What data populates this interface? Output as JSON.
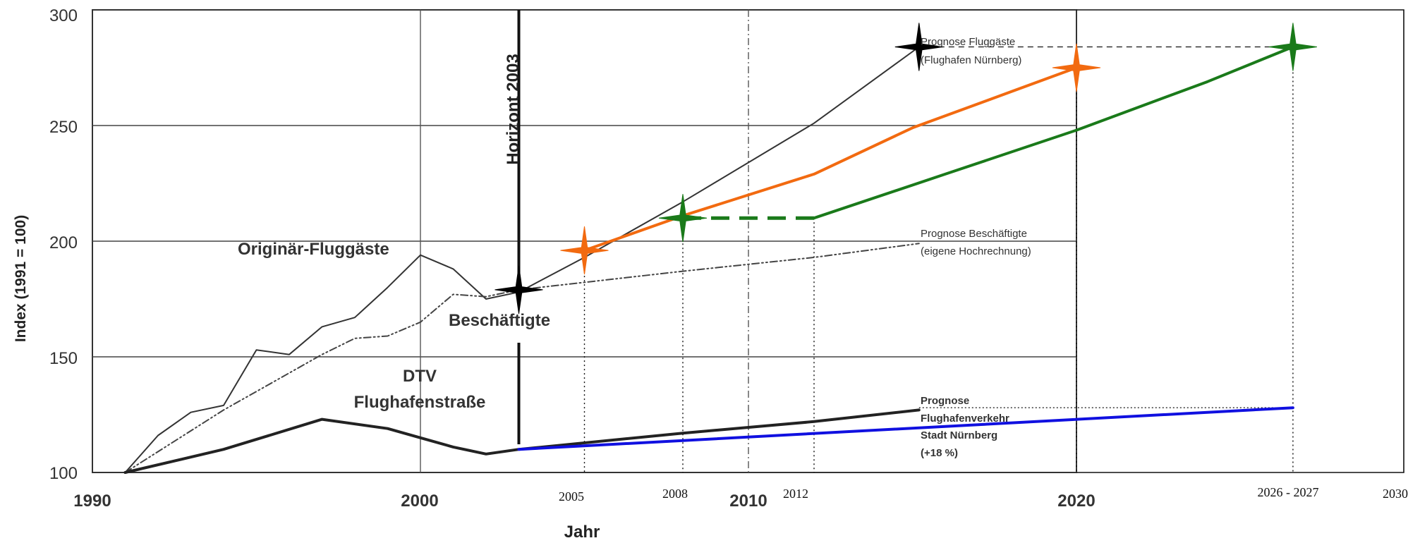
{
  "chart_data": {
    "type": "line",
    "ylabel": "Index (1991 = 100)",
    "xlabel": "Jahr",
    "xlim": [
      1990,
      2030
    ],
    "ylim": [
      100,
      300
    ],
    "x_ticks_main": [
      "1990",
      "2000",
      "2010",
      "2020"
    ],
    "x_ticks_added": [
      "2005",
      "2008",
      "2012",
      "2026 - 2027",
      "2030"
    ],
    "y_ticks": [
      "100",
      "150",
      "200",
      "250",
      "300"
    ],
    "annotations": {
      "horizont": "Horizont 2003",
      "originaer": "Originär-Fluggäste",
      "beschaeftigte": "Beschäftigte",
      "dtv_1": "DTV",
      "dtv_2": "Flughafenstraße",
      "prog_flug_1": "Prognose Fluggäste",
      "prog_flug_2": "(Flughafen Nürnberg)",
      "prog_besch_1": "Prognose Beschäftigte",
      "prog_besch_2": "(eigene Hochrechnung)",
      "prog_verk_1": "Prognose",
      "prog_verk_2": "Flughafenverkehr",
      "prog_verk_3": "Stadt Nürnberg",
      "prog_verk_4": "(+18 %)"
    },
    "series": [
      {
        "name": "Originär-Fluggäste",
        "color": "#333333",
        "style": "solid",
        "x": [
          1991,
          1992,
          1993,
          1994,
          1995,
          1996,
          1997,
          1998,
          1999,
          2000,
          2001,
          2002,
          2003,
          2005,
          2008,
          2012,
          2015.2
        ],
        "y": [
          100,
          116,
          126,
          129,
          153,
          151,
          163,
          167,
          180,
          194,
          188,
          175,
          178,
          193,
          217,
          251,
          284
        ]
      },
      {
        "name": "Beschäftigte",
        "color": "#444444",
        "style": "dashdot",
        "x": [
          1991,
          1994,
          1997,
          1998,
          1999,
          2000,
          2001,
          2002,
          2003,
          2008,
          2012,
          2015.2
        ],
        "y": [
          100,
          127,
          151,
          158,
          159,
          165,
          177,
          176,
          179,
          187,
          193,
          199
        ]
      },
      {
        "name": "DTV Flughafenstraße",
        "color": "#222222",
        "style": "solid-thick",
        "x": [
          1991,
          1994,
          1997,
          1999,
          2000,
          2001,
          2002,
          2003,
          2008,
          2012,
          2015.2
        ],
        "y": [
          100,
          110,
          123,
          119,
          115,
          111,
          108,
          110,
          117,
          122,
          127
        ]
      },
      {
        "name": "",
        "color": "#f26a10",
        "style": "solid",
        "x": [
          2005,
          2008,
          2012,
          2015,
          2020
        ],
        "y": [
          196,
          211,
          229,
          249,
          275
        ]
      },
      {
        "name": "",
        "color": "#1a7a1a",
        "style": "solid",
        "x": [
          2012,
          2016,
          2020,
          2024,
          2026.6
        ],
        "y": [
          210,
          229,
          248,
          269,
          284
        ]
      },
      {
        "name": "",
        "color": "#1a7a1a",
        "style": "dashed",
        "x": [
          2008,
          2012
        ],
        "y": [
          210,
          210
        ]
      },
      {
        "name": "",
        "color": "#1010e0",
        "style": "solid",
        "x": [
          2003,
          2026.6
        ],
        "y": [
          110,
          128
        ]
      }
    ],
    "markers": [
      {
        "x": 2003,
        "y": 179,
        "color": "#000000"
      },
      {
        "x": 2015.2,
        "y": 284,
        "color": "#000000"
      },
      {
        "x": 2005,
        "y": 196,
        "color": "#f26a10"
      },
      {
        "x": 2020,
        "y": 275,
        "color": "#f26a10"
      },
      {
        "x": 2008,
        "y": 210,
        "color": "#1a7a1a"
      },
      {
        "x": 2026.6,
        "y": 284,
        "color": "#1a7a1a"
      }
    ],
    "grid": true,
    "legend": "none"
  }
}
